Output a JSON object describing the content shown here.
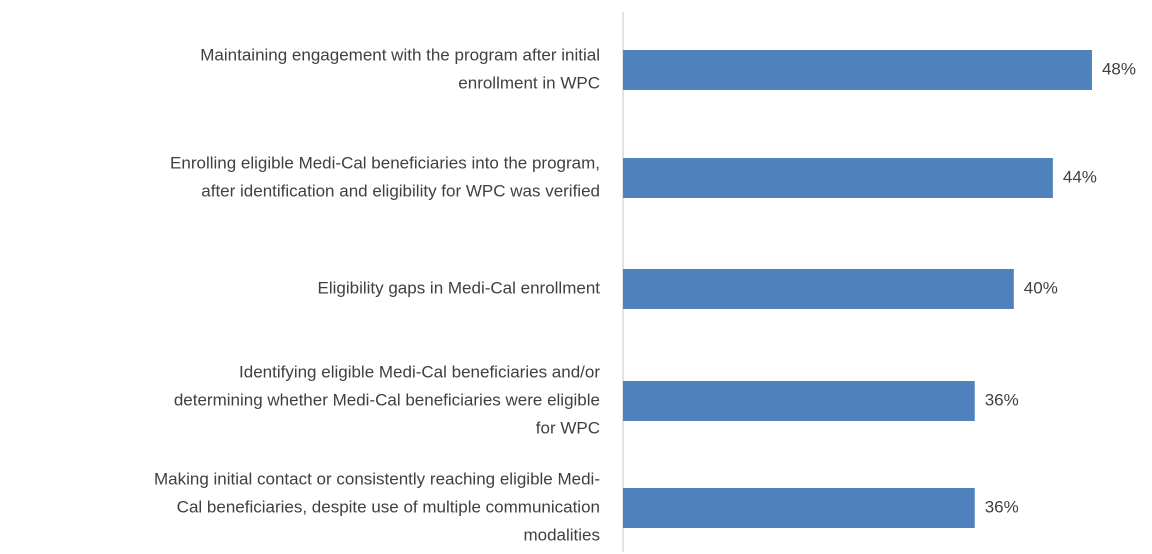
{
  "chart_data": {
    "type": "bar",
    "orientation": "horizontal",
    "color": "#4f81bd",
    "categories": [
      [
        "Maintaining engagement with the program after initial",
        "enrollment in WPC"
      ],
      [
        "Enrolling eligible Medi-Cal beneficiaries into the program,",
        "after identification and eligibility for WPC was verified"
      ],
      [
        "Eligibility gaps in Medi-Cal enrollment"
      ],
      [
        "Identifying eligible Medi-Cal beneficiaries and/or",
        "determining whether Medi-Cal beneficiaries were eligible",
        "for WPC"
      ],
      [
        "Making initial contact or consistently reaching eligible Medi-",
        "Cal beneficiaries, despite use of multiple communication",
        "modalities"
      ]
    ],
    "values": [
      48,
      44,
      40,
      36,
      36
    ],
    "value_labels": [
      "48%",
      "44%",
      "40%",
      "36%",
      "36%"
    ]
  }
}
